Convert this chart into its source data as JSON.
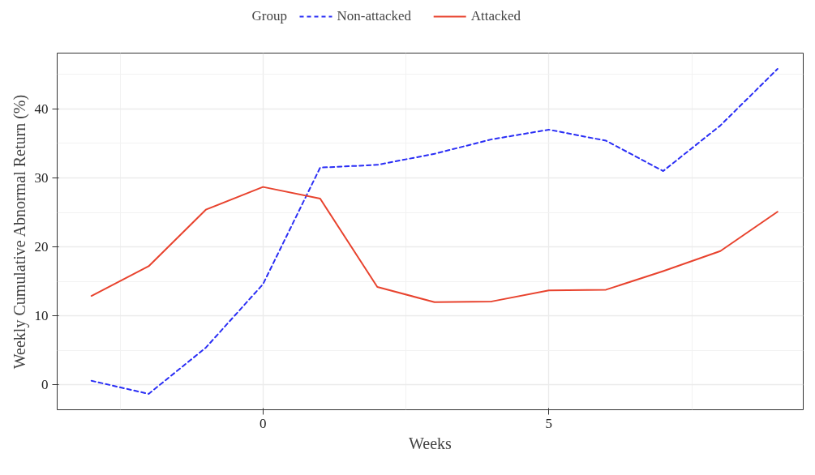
{
  "chart_data": {
    "type": "line",
    "xlabel": "Weeks",
    "ylabel": "Weekly Cumulative Abnormal Return (%)",
    "legend_title": "Group",
    "legend": "top",
    "x": [
      -3,
      -2,
      -1,
      0,
      1,
      2,
      3,
      4,
      5,
      6,
      7,
      8,
      9
    ],
    "series": [
      {
        "name": "Non-attacked",
        "color": "#2a2ef5",
        "line_style": "dashed",
        "values": [
          0.6,
          -1.3,
          5.4,
          14.6,
          31.5,
          31.9,
          33.5,
          35.6,
          37.0,
          35.4,
          31.0,
          37.6,
          45.8
        ]
      },
      {
        "name": "Attacked",
        "color": "#e8432e",
        "line_style": "solid",
        "values": [
          12.9,
          17.2,
          25.4,
          28.7,
          27.0,
          14.2,
          12.0,
          12.1,
          13.7,
          13.8,
          16.5,
          19.4,
          25.1
        ]
      }
    ],
    "xlim": [
      -3.6,
      9.45
    ],
    "ylim": [
      -3.6,
      48.1
    ],
    "xticks": [
      0,
      5
    ],
    "yticks": [
      0,
      10,
      20,
      30,
      40
    ],
    "grid": true,
    "marker": "none"
  }
}
